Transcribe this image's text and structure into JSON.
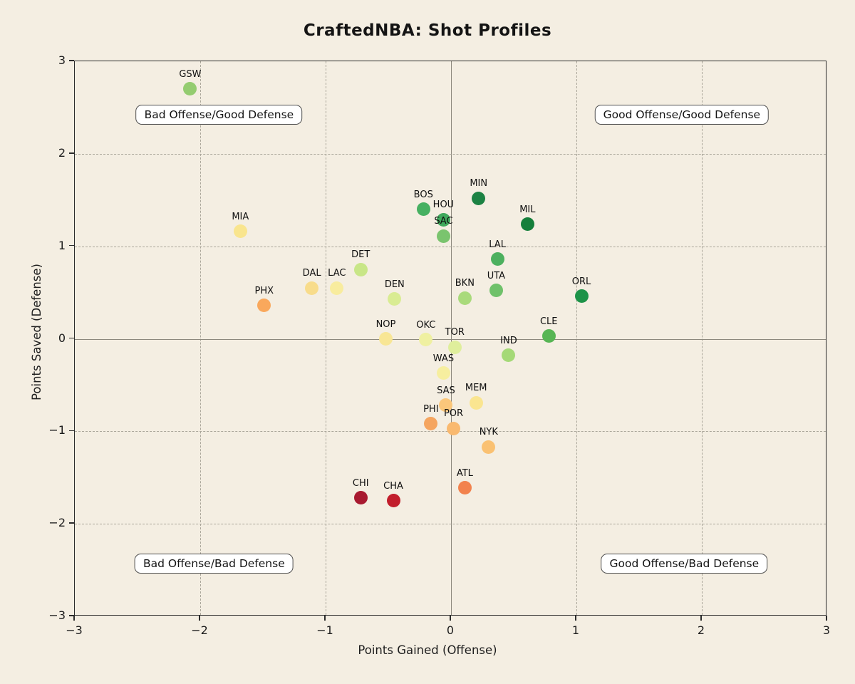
{
  "title": "CraftedNBA: Shot Profiles",
  "colors": {
    "background": "#F4EEE2",
    "frame": "#2b2b2b",
    "gridline": "#aaa69a",
    "zero_line": "#8c887d",
    "quadrant_box_bg": "#FFFFFF",
    "quadrant_box_border": "#4f4f4f",
    "text": "#141414"
  },
  "chart_data": {
    "type": "scatter",
    "title": "CraftedNBA: Shot Profiles",
    "xlabel": "Points Gained (Offense)",
    "ylabel": "Points Saved (Defense)",
    "xlim": [
      -3,
      3
    ],
    "ylim": [
      -3,
      3
    ],
    "xtick_values": [
      -3,
      -2,
      -1,
      0,
      1,
      2,
      3
    ],
    "xtick_labels": [
      "−3",
      "−2",
      "−1",
      "0",
      "1",
      "2",
      "3"
    ],
    "ytick_values": [
      -3,
      -2,
      -1,
      0,
      1,
      2,
      3
    ],
    "ytick_labels": [
      "−3",
      "−2",
      "−1",
      "0",
      "1",
      "2",
      "3"
    ],
    "grid": "dashed gridlines at integers, solid gray lines at x=0 and y=0",
    "legend": "none",
    "color_encoding": "red-yellow-green scale by combined offense+defense rating",
    "points": [
      {
        "team": "GSW",
        "x": -2.08,
        "y": 2.7,
        "color": "#94CC70"
      },
      {
        "team": "MIA",
        "x": -1.68,
        "y": 1.16,
        "color": "#F9E58E"
      },
      {
        "team": "PHX",
        "x": -1.49,
        "y": 0.36,
        "color": "#F9A85C"
      },
      {
        "team": "DAL",
        "x": -1.11,
        "y": 0.55,
        "color": "#F8DC8B"
      },
      {
        "team": "LAC",
        "x": -0.91,
        "y": 0.55,
        "color": "#F8EC9E"
      },
      {
        "team": "DET",
        "x": -0.72,
        "y": 0.75,
        "color": "#C8E687"
      },
      {
        "team": "CHI",
        "x": -0.72,
        "y": -1.72,
        "color": "#A81A30"
      },
      {
        "team": "NOP",
        "x": -0.52,
        "y": 0.0,
        "color": "#F8E695"
      },
      {
        "team": "CHA",
        "x": -0.46,
        "y": -1.75,
        "color": "#C21E2C"
      },
      {
        "team": "DEN",
        "x": -0.45,
        "y": 0.43,
        "color": "#D9EC93"
      },
      {
        "team": "BOS",
        "x": -0.22,
        "y": 1.4,
        "color": "#46B061"
      },
      {
        "team": "OKC",
        "x": -0.2,
        "y": -0.01,
        "color": "#EFF0A1"
      },
      {
        "team": "PHI",
        "x": -0.16,
        "y": -0.92,
        "color": "#F5A55F"
      },
      {
        "team": "HOU",
        "x": -0.06,
        "y": 1.29,
        "color": "#3FA95C"
      },
      {
        "team": "SAC",
        "x": -0.06,
        "y": 1.11,
        "color": "#7AC46E"
      },
      {
        "team": "WAS",
        "x": -0.06,
        "y": -0.37,
        "color": "#F6EE9F"
      },
      {
        "team": "SAS",
        "x": -0.04,
        "y": -0.72,
        "color": "#FBC77B"
      },
      {
        "team": "POR",
        "x": 0.02,
        "y": -0.97,
        "color": "#F9B96F"
      },
      {
        "team": "TOR",
        "x": 0.03,
        "y": -0.09,
        "color": "#DFEE9C"
      },
      {
        "team": "BKN",
        "x": 0.11,
        "y": 0.44,
        "color": "#A9DA7B"
      },
      {
        "team": "ATL",
        "x": 0.11,
        "y": -1.61,
        "color": "#F2824D"
      },
      {
        "team": "MEM",
        "x": 0.2,
        "y": -0.69,
        "color": "#FAE590"
      },
      {
        "team": "MIN",
        "x": 0.22,
        "y": 1.52,
        "color": "#1C8243"
      },
      {
        "team": "NYK",
        "x": 0.3,
        "y": -1.17,
        "color": "#FAC172"
      },
      {
        "team": "UTA",
        "x": 0.36,
        "y": 0.52,
        "color": "#6FC16A"
      },
      {
        "team": "LAL",
        "x": 0.37,
        "y": 0.86,
        "color": "#4CB05E"
      },
      {
        "team": "IND",
        "x": 0.46,
        "y": -0.18,
        "color": "#A5D977"
      },
      {
        "team": "MIL",
        "x": 0.61,
        "y": 1.24,
        "color": "#157F3B"
      },
      {
        "team": "CLE",
        "x": 0.78,
        "y": 0.03,
        "color": "#57B554"
      },
      {
        "team": "ORL",
        "x": 1.04,
        "y": 0.46,
        "color": "#1D9348"
      }
    ],
    "quadrant_labels": [
      {
        "text": "Bad Offense/Good Defense",
        "x": -1.85,
        "y": 2.42
      },
      {
        "text": "Good Offense/Good Defense",
        "x": 1.84,
        "y": 2.42
      },
      {
        "text": "Bad Offense/Bad Defense",
        "x": -1.89,
        "y": -2.43
      },
      {
        "text": "Good Offense/Bad Defense",
        "x": 1.86,
        "y": -2.43
      }
    ]
  }
}
